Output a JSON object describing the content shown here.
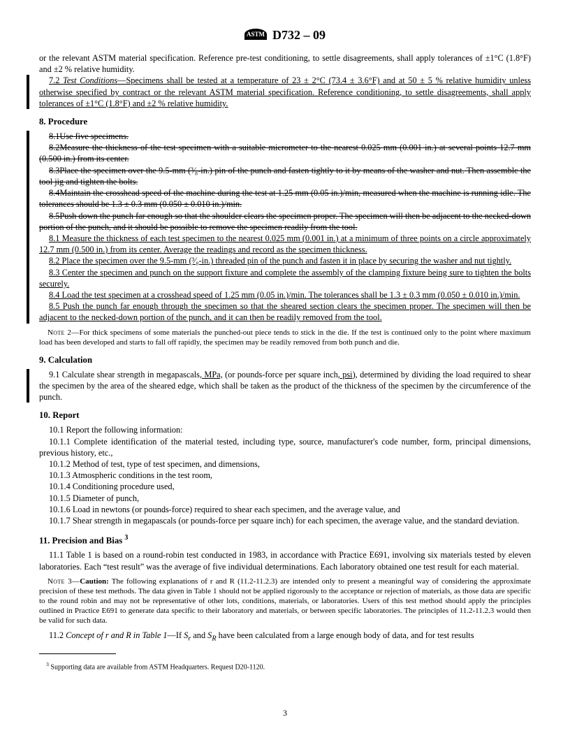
{
  "header": {
    "logo_text": "ASTM",
    "doc_id": "D732 – 09"
  },
  "top_tail": "or the relevant ASTM material specification. Reference pre-test conditioning, to settle disagreements, shall apply tolerances of ±1°C (1.8°F) and ±2 % relative humidity.",
  "p7_2_lead": "7.2 ",
  "p7_2_label": "Test Conditions",
  "p7_2_body": "—Specimens shall be tested at a temperature of 23 ± 2°C (73.4 ± 3.6°F) and at 50 ± 5 % relative humidity unless otherwise specified by contract or the relevant ASTM material specification. Reference conditioning, to settle disagreements, shall apply tolerances of ±1°C (1.8°F) and ±2 % relative humidity.",
  "s8": "8.  Procedure",
  "p8_del_1": "8.1Use five specimens.",
  "p8_del_2": "8.2Measure the thickness of the test specimen with a suitable micrometer to the nearest 0.025 mm (0.001 in.) at several points 12.7 mm (0.500 in.) from its center.",
  "p8_del_3": "8.3Place the specimen over the 9.5-mm (³⁄₈-in.) pin of the punch and fasten tightly to it by means of the washer and nut. Then assemble the tool jig and tighten the bolts.",
  "p8_del_4": "8.4Maintain the crosshead speed of the machine during the test at 1.25 mm (0.05 in.)/min, measured when the machine is running idle. The tolerances should be 1.3 ± 0.3 mm (0.050 ± 0.010 in.)/min.",
  "p8_del_5": "8.5Push down the punch far enough so that the shoulder clears the specimen proper. The specimen will then be adjacent to the necked-down portion of the punch, and it should be possible to remove the specimen readily from the tool.",
  "p8_1": "8.1 Measure the thickness of each test specimen to the nearest 0.025 mm (0.001 in.) at a minimum of three points on a circle approximately 12.7 mm (0.500 in.) from its center. Average the readings and record as the specimen thickness.",
  "p8_2": "8.2 Place the specimen over the 9.5-mm (³⁄₈-in.) threaded pin of the punch and fasten it in place by securing the washer and nut tightly.",
  "p8_3": "8.3 Center the specimen and punch on the support fixture and complete the assembly of the clamping fixture being sure to tighten the bolts securely.",
  "p8_4": "8.4 Load the test specimen at a crosshead speed of 1.25 mm (0.05 in.)/min. The tolerances shall be 1.3 ± 0.3 mm (0.050 ± 0.010 in.)/min.",
  "p8_5": "8.5 Push the punch far enough through the specimen so that the sheared section clears the specimen proper. The specimen will then be adjacent to the necked-down portion of the punch, and it can then be readily removed from the tool.",
  "note2_lead": "Note 2—",
  "note2_body": "For thick specimens of some materials the punched-out piece tends to stick in the die. If the test is continued only to the point where maximum load has been developed and starts to fall off rapidly, the specimen may be readily removed from both punch and die.",
  "s9": "9.  Calculation",
  "p9_1a": "9.1 Calculate shear strength in megapascals",
  "p9_1_mpa": ", MPa,",
  "p9_1b": " (or pounds-force per square inch",
  "p9_1_psi": ", psi",
  "p9_1c": "), determined by dividing the load required to shear the specimen by the area of the sheared edge, which shall be taken as the product of the thickness of the specimen by the circumference of the punch.",
  "s10": "10.  Report",
  "p10_1": "10.1 Report the following information:",
  "p10_1_1": "10.1.1 Complete identification of the material tested, including type, source, manufacturer's code number, form, principal dimensions, previous history, etc.,",
  "p10_1_2": "10.1.2 Method of test, type of test specimen, and dimensions,",
  "p10_1_3": "10.1.3 Atmospheric conditions in the test room,",
  "p10_1_4": "10.1.4 Conditioning procedure used,",
  "p10_1_5": "10.1.5 Diameter of punch,",
  "p10_1_6": "10.1.6 Load in newtons (or pounds-force) required to shear each specimen, and the average value, and",
  "p10_1_7": "10.1.7 Shear strength in megapascals (or pounds-force per square inch) for each specimen, the average value, and the standard deviation.",
  "s11_a": "11.  Precision and Bias ",
  "s11_sup": "3",
  "p11_1": "11.1 Table 1 is based on a round-robin test conducted in 1983, in accordance with Practice E691, involving six materials tested by eleven laboratories. Each “test result” was the average of five individual determinations. Each laboratory obtained one test result for each material.",
  "note3_lead": "Note 3—",
  "note3_caution": "Caution:",
  "note3_body": " The following explanations of r and R (11.2-11.2.3) are intended only to present a meaningful way of considering the approximate precision of these test methods. The data given in Table 1 should not be applied rigorously to the acceptance or rejection of materials, as those data are specific to the round robin and may not be representative of other lots, conditions, materials, or laboratories. Users of this test method should apply the principles outlined in Practice E691 to generate data specific to their laboratory and materials, or between specific laboratories. The principles of 11.2-11.2.3 would then be valid for such data.",
  "p11_2_lead": "11.2 ",
  "p11_2_label": "Concept of r and R in Table 1",
  "p11_2_body_a": "—If ",
  "p11_2_body_b": " and ",
  "p11_2_body_c": " have been calculated from a large enough body of data, and for test results",
  "sr": "Sᵣ",
  "sR": "S_R",
  "footnote3_sup": "3",
  "footnote3": " Supporting data are available from ASTM Headquarters. Request  D20-1120.",
  "page_number": "3"
}
